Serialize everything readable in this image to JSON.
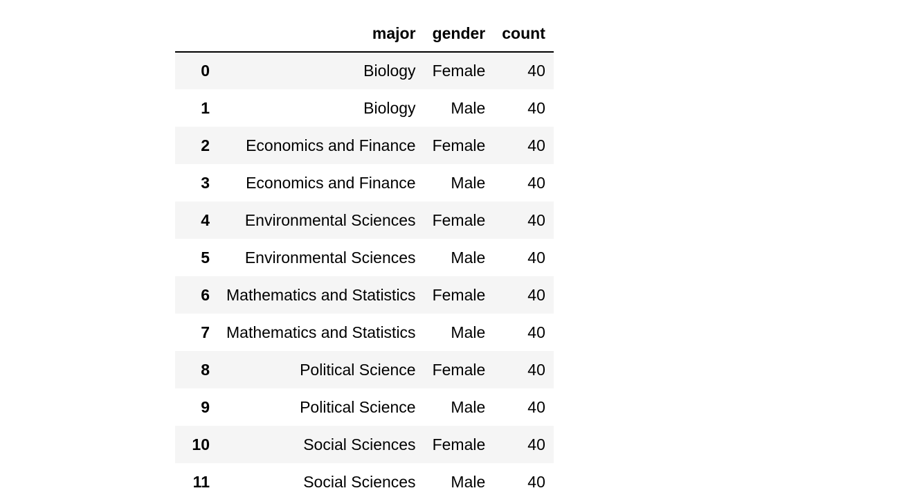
{
  "table": {
    "columns": [
      "major",
      "gender",
      "count"
    ],
    "rows": [
      {
        "index": "0",
        "major": "Biology",
        "gender": "Female",
        "count": "40"
      },
      {
        "index": "1",
        "major": "Biology",
        "gender": "Male",
        "count": "40"
      },
      {
        "index": "2",
        "major": "Economics and Finance",
        "gender": "Female",
        "count": "40"
      },
      {
        "index": "3",
        "major": "Economics and Finance",
        "gender": "Male",
        "count": "40"
      },
      {
        "index": "4",
        "major": "Environmental Sciences",
        "gender": "Female",
        "count": "40"
      },
      {
        "index": "5",
        "major": "Environmental Sciences",
        "gender": "Male",
        "count": "40"
      },
      {
        "index": "6",
        "major": "Mathematics and Statistics",
        "gender": "Female",
        "count": "40"
      },
      {
        "index": "7",
        "major": "Mathematics and Statistics",
        "gender": "Male",
        "count": "40"
      },
      {
        "index": "8",
        "major": "Political Science",
        "gender": "Female",
        "count": "40"
      },
      {
        "index": "9",
        "major": "Political Science",
        "gender": "Male",
        "count": "40"
      },
      {
        "index": "10",
        "major": "Social Sciences",
        "gender": "Female",
        "count": "40"
      },
      {
        "index": "11",
        "major": "Social Sciences",
        "gender": "Male",
        "count": "40"
      }
    ]
  }
}
